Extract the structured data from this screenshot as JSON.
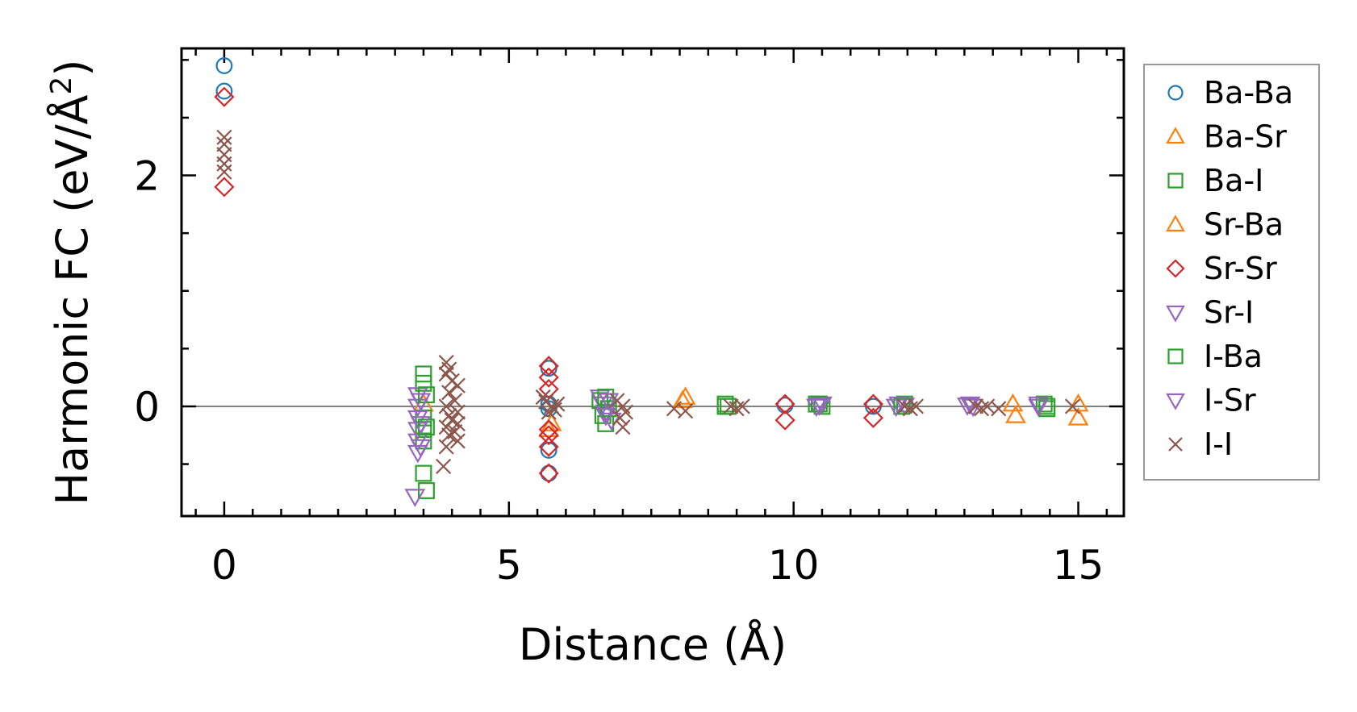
{
  "chart_data": {
    "type": "scatter",
    "title": "",
    "xlabel": "Distance (Å)",
    "ylabel_main": "Harmonic FC (eV/Å",
    "ylabel_sup": "2",
    "ylabel_close": ")",
    "xlim": [
      -0.75,
      15.8
    ],
    "ylim": [
      -0.95,
      3.1
    ],
    "xticks": [
      0,
      5,
      10,
      15
    ],
    "xtick_labels": [
      "0",
      "5",
      "10",
      "15"
    ],
    "yticks": [
      0,
      2
    ],
    "ytick_labels": [
      "0",
      "2"
    ],
    "grid": false,
    "zero_line": true,
    "legend_position": "outside-right",
    "series": [
      {
        "name": "Ba-Ba",
        "marker": "circle",
        "color": "#1f77b4",
        "points": [
          [
            0,
            2.95
          ],
          [
            0,
            2.73
          ],
          [
            5.7,
            0.33
          ],
          [
            5.7,
            -0.38
          ],
          [
            5.7,
            -0.58
          ],
          [
            5.7,
            0.02
          ],
          [
            5.7,
            -0.02
          ],
          [
            9.85,
            0.01
          ],
          [
            11.4,
            0.0
          ]
        ]
      },
      {
        "name": "Ba-Sr",
        "marker": "triangle-up",
        "color": "#ff7f0e",
        "points": [
          [
            8.1,
            0.08
          ],
          [
            13.9,
            -0.08
          ],
          [
            15.0,
            -0.1
          ],
          [
            5.7,
            -0.2
          ],
          [
            3.5,
            0.02
          ]
        ]
      },
      {
        "name": "Ba-I",
        "marker": "square",
        "color": "#2ca02c",
        "points": [
          [
            3.5,
            0.28
          ],
          [
            3.5,
            0.2
          ],
          [
            3.5,
            -0.1
          ],
          [
            3.5,
            -0.2
          ],
          [
            3.5,
            -0.3
          ],
          [
            3.5,
            -0.58
          ],
          [
            3.55,
            -0.73
          ],
          [
            6.6,
            0.05
          ],
          [
            6.65,
            -0.08
          ],
          [
            6.7,
            -0.15
          ],
          [
            8.8,
            0.02
          ],
          [
            8.85,
            0.0
          ],
          [
            10.4,
            0.02
          ],
          [
            10.5,
            0.0
          ],
          [
            11.95,
            0.02
          ],
          [
            14.4,
            0.02
          ],
          [
            14.45,
            -0.02
          ]
        ]
      },
      {
        "name": "Sr-Ba",
        "marker": "triangle-up",
        "color": "#ff7f0e",
        "points": [
          [
            15.0,
            0.02
          ],
          [
            13.85,
            0.02
          ],
          [
            8.05,
            0.05
          ],
          [
            5.75,
            -0.15
          ]
        ]
      },
      {
        "name": "Sr-Sr",
        "marker": "diamond",
        "color": "#d62728",
        "points": [
          [
            0,
            2.68
          ],
          [
            0,
            1.9
          ],
          [
            5.7,
            0.35
          ],
          [
            5.7,
            0.25
          ],
          [
            5.7,
            0.15
          ],
          [
            5.7,
            -0.2
          ],
          [
            5.7,
            -0.25
          ],
          [
            5.7,
            -0.35
          ],
          [
            5.7,
            -0.58
          ],
          [
            9.85,
            0.02
          ],
          [
            9.85,
            -0.12
          ],
          [
            11.4,
            0.02
          ],
          [
            11.4,
            -0.1
          ]
        ]
      },
      {
        "name": "Sr-I",
        "marker": "triangle-down",
        "color": "#9467bd",
        "points": [
          [
            3.4,
            0.1
          ],
          [
            3.4,
            0.0
          ],
          [
            3.4,
            -0.1
          ],
          [
            3.4,
            -0.2
          ],
          [
            3.4,
            -0.3
          ],
          [
            3.4,
            -0.4
          ],
          [
            3.35,
            -0.78
          ],
          [
            6.6,
            0.08
          ],
          [
            6.65,
            0.02
          ],
          [
            6.7,
            -0.05
          ],
          [
            6.8,
            -0.12
          ],
          [
            10.4,
            0.0
          ],
          [
            10.5,
            0.02
          ],
          [
            11.85,
            0.02
          ],
          [
            11.95,
            0.01
          ],
          [
            13.1,
            0.02
          ],
          [
            14.3,
            0.02
          ]
        ]
      },
      {
        "name": "I-Ba",
        "marker": "square",
        "color": "#2ca02c",
        "points": [
          [
            3.55,
            0.1
          ],
          [
            3.55,
            -0.18
          ],
          [
            6.7,
            0.08
          ],
          [
            6.75,
            -0.02
          ],
          [
            8.8,
            0.0
          ],
          [
            10.45,
            0.02
          ],
          [
            11.9,
            0.0
          ],
          [
            14.45,
            0.0
          ]
        ]
      },
      {
        "name": "I-Sr",
        "marker": "triangle-down",
        "color": "#9467bd",
        "points": [
          [
            3.45,
            0.05
          ],
          [
            3.45,
            -0.15
          ],
          [
            3.45,
            -0.35
          ],
          [
            6.75,
            0.05
          ],
          [
            6.7,
            -0.08
          ],
          [
            10.45,
            0.01
          ],
          [
            11.8,
            0.0
          ],
          [
            13.05,
            0.01
          ],
          [
            13.15,
            0.0
          ],
          [
            14.3,
            0.0
          ]
        ]
      },
      {
        "name": "I-I",
        "marker": "x",
        "color": "#8c564b",
        "points": [
          [
            0,
            2.33
          ],
          [
            0,
            2.27
          ],
          [
            0,
            2.18
          ],
          [
            0,
            2.1
          ],
          [
            0,
            2.03
          ],
          [
            3.9,
            0.38
          ],
          [
            3.95,
            0.32
          ],
          [
            3.9,
            0.28
          ],
          [
            4.0,
            0.22
          ],
          [
            4.1,
            0.18
          ],
          [
            3.95,
            0.12
          ],
          [
            4.05,
            0.05
          ],
          [
            3.9,
            0.0
          ],
          [
            4.1,
            -0.05
          ],
          [
            3.95,
            -0.08
          ],
          [
            4.0,
            -0.12
          ],
          [
            4.1,
            -0.15
          ],
          [
            3.9,
            -0.18
          ],
          [
            4.05,
            -0.22
          ],
          [
            3.95,
            -0.25
          ],
          [
            4.1,
            -0.3
          ],
          [
            3.9,
            -0.35
          ],
          [
            3.85,
            -0.52
          ],
          [
            5.6,
            0.08
          ],
          [
            5.65,
            0.04
          ],
          [
            5.75,
            0.0
          ],
          [
            5.8,
            -0.03
          ],
          [
            5.85,
            0.02
          ],
          [
            5.7,
            -0.05
          ],
          [
            6.9,
            0.05
          ],
          [
            7.0,
            0.0
          ],
          [
            7.05,
            -0.05
          ],
          [
            6.95,
            -0.1
          ],
          [
            7.0,
            -0.18
          ],
          [
            7.9,
            -0.02
          ],
          [
            8.1,
            -0.04
          ],
          [
            8.9,
            0.0
          ],
          [
            9.0,
            -0.02
          ],
          [
            9.1,
            0.0
          ],
          [
            11.95,
            0.0
          ],
          [
            12.05,
            -0.02
          ],
          [
            12.15,
            0.0
          ],
          [
            13.2,
            0.0
          ],
          [
            13.3,
            -0.02
          ],
          [
            13.4,
            0.0
          ],
          [
            13.6,
            -0.02
          ],
          [
            14.9,
            0.0
          ]
        ]
      }
    ]
  }
}
